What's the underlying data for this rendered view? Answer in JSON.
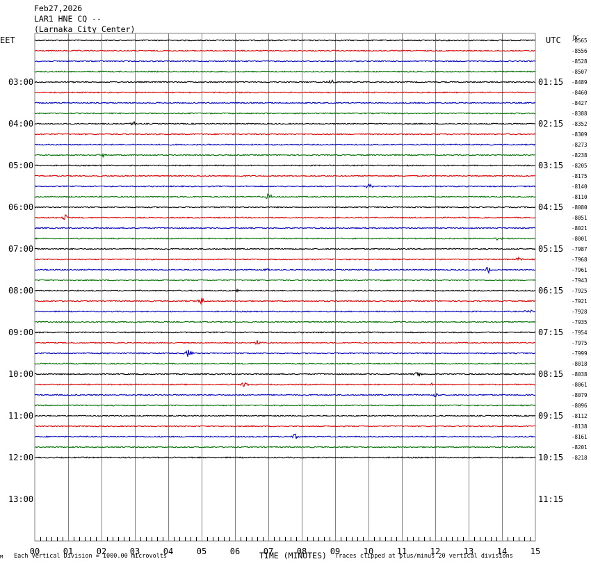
{
  "header": {
    "date": "Feb27,2026",
    "station": "LAR1 HNE CQ --",
    "location": "(Larnaka City Center)"
  },
  "left_zone_label": "EET",
  "right_zone_label": "UTC",
  "dc_label": "DC",
  "footer": {
    "scale_note": "Each Vertical Division = 1000.00 microvolts",
    "x_axis_title": "TIME (MINUTES)",
    "clip_note": "Traces clipped at plus/minus 20 vertical divisions",
    "corner_mark": "M"
  },
  "colors": {
    "trace_cycle": [
      "#000000",
      "#e00000",
      "#0000c0",
      "#007000"
    ],
    "grid": "#808080",
    "text": "#000000"
  },
  "chart_data": {
    "type": "line",
    "title": "",
    "xlabel": "TIME (MINUTES)",
    "xlim": [
      0,
      15
    ],
    "x_ticks": [
      "00",
      "01",
      "02",
      "03",
      "04",
      "05",
      "06",
      "07",
      "08",
      "09",
      "10",
      "11",
      "12",
      "13",
      "14",
      "15"
    ],
    "row_interval_minutes": 15,
    "rows_total": 48,
    "left_hour_labels": [
      "03:00",
      "04:00",
      "05:00",
      "06:00",
      "07:00",
      "08:00",
      "09:00",
      "10:00",
      "11:00",
      "12:00",
      "13:00"
    ],
    "right_hour_labels": [
      "01:15",
      "02:15",
      "03:15",
      "04:15",
      "05:15",
      "06:15",
      "07:15",
      "08:15",
      "09:15",
      "10:15",
      "11:15"
    ],
    "dc_offsets": [
      -8565,
      -8556,
      -8528,
      -8507,
      -8489,
      -8460,
      -8427,
      -8388,
      -8352,
      -8309,
      -8273,
      -8238,
      -8205,
      -8175,
      -8140,
      -8110,
      -8080,
      -8051,
      -8021,
      -8001,
      -7987,
      -7968,
      -7961,
      -7943,
      -7925,
      -7921,
      -7928,
      -7935,
      -7954,
      -7975,
      -7999,
      -8018,
      -8038,
      -8061,
      -8079,
      -8096,
      -8112,
      -8138,
      -8161,
      -8201,
      -8218
    ],
    "events": [
      {
        "trace": 4,
        "minute": 8.9,
        "amplitude": 3
      },
      {
        "trace": 8,
        "minute": 3.0,
        "amplitude": 3
      },
      {
        "trace": 11,
        "minute": 2.0,
        "amplitude": 4
      },
      {
        "trace": 14,
        "minute": 10.0,
        "amplitude": 5
      },
      {
        "trace": 15,
        "minute": 7.0,
        "amplitude": 4
      },
      {
        "trace": 17,
        "minute": 0.9,
        "amplitude": 5
      },
      {
        "trace": 19,
        "minute": 13.9,
        "amplitude": 4
      },
      {
        "trace": 21,
        "minute": 14.5,
        "amplitude": 3
      },
      {
        "trace": 22,
        "minute": 13.6,
        "amplitude": 5
      },
      {
        "trace": 22,
        "minute": 6.9,
        "amplitude": 3
      },
      {
        "trace": 24,
        "minute": 6.1,
        "amplitude": 3
      },
      {
        "trace": 25,
        "minute": 5.0,
        "amplitude": 5
      },
      {
        "trace": 26,
        "minute": 14.8,
        "amplitude": 3
      },
      {
        "trace": 29,
        "minute": 6.7,
        "amplitude": 4
      },
      {
        "trace": 30,
        "minute": 4.6,
        "amplitude": 6
      },
      {
        "trace": 32,
        "minute": 11.5,
        "amplitude": 4
      },
      {
        "trace": 33,
        "minute": 6.3,
        "amplitude": 4
      },
      {
        "trace": 33,
        "minute": 11.9,
        "amplitude": 4
      },
      {
        "trace": 34,
        "minute": 12.0,
        "amplitude": 4
      },
      {
        "trace": 38,
        "minute": 7.8,
        "amplitude": 4
      }
    ]
  }
}
